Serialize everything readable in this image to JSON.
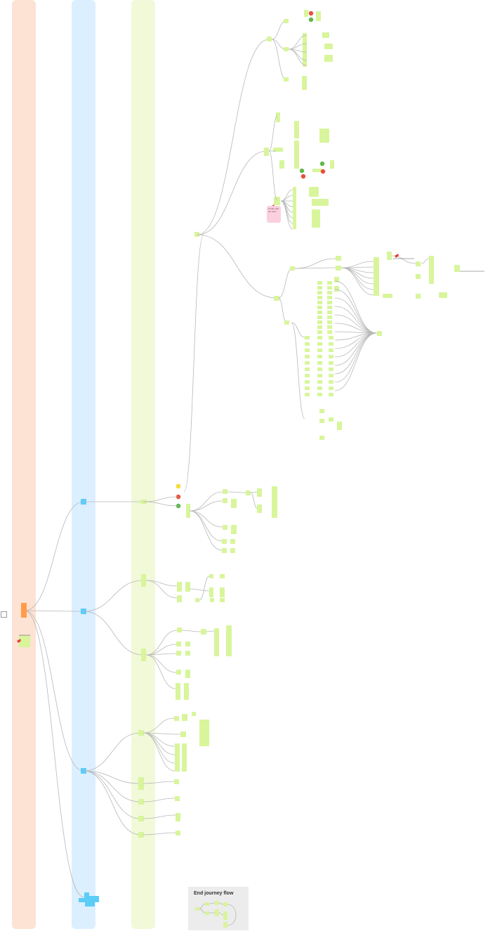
{
  "board": {
    "note_text": "Create with the team",
    "end_panel_title": "End journey flow"
  },
  "colors": {
    "lane_orange": "#fde3d3",
    "lane_blue": "#dcefff",
    "lane_green": "#f1f9d9",
    "node_green": "#d8f59b",
    "node_blue": "#5ccdf7",
    "node_orange": "#ff9c4a",
    "connector": "#b8b8b8",
    "status_red": "#e8503a",
    "status_green": "#5db84a",
    "status_yellow": "#f4dd3c",
    "pin_red": "#e5403a"
  },
  "icons": [
    "pin-icon",
    "status-red-icon",
    "status-green-icon",
    "status-yellow-icon"
  ]
}
